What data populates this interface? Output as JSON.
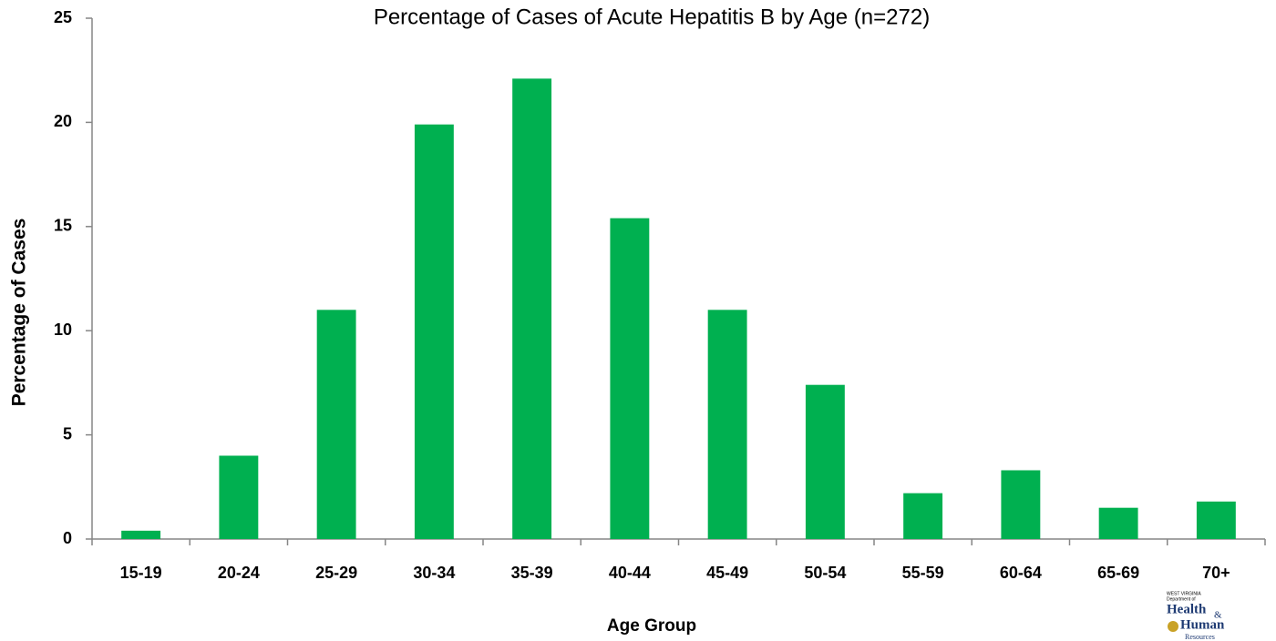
{
  "chart_data": {
    "type": "bar",
    "title": "Percentage of Cases of Acute Hepatitis B by Age (n=272)",
    "x_label": "Age Group",
    "y_label": "Percentage of Cases",
    "categories": [
      "15-19",
      "20-24",
      "25-29",
      "30-34",
      "35-39",
      "40-44",
      "45-49",
      "50-54",
      "55-59",
      "60-64",
      "65-69",
      "70+"
    ],
    "values": [
      0.4,
      4.0,
      11.0,
      19.9,
      22.1,
      15.4,
      11.0,
      7.4,
      2.2,
      3.3,
      1.5,
      1.8
    ],
    "color": "#00b050",
    "ylim": [
      0,
      25
    ],
    "yticks": [
      0,
      5,
      10,
      15,
      20,
      25
    ],
    "grid": false
  },
  "logo": {
    "state": "WEST VIRGINIA",
    "dept": "Department of",
    "line1": "Health",
    "amp": "&",
    "line2": "Human",
    "line3": "Resources"
  }
}
